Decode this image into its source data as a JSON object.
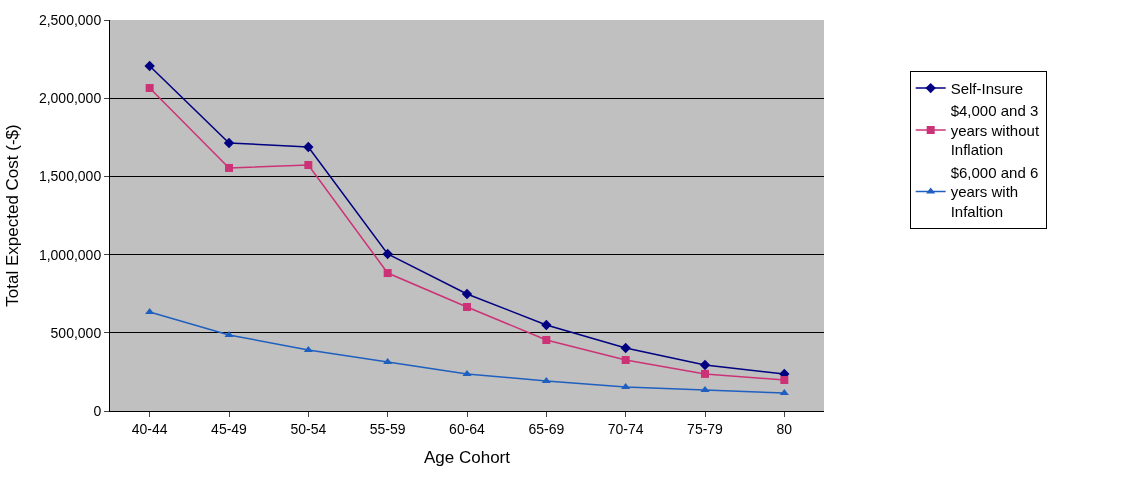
{
  "chart_data": {
    "type": "line",
    "xlabel": "Age Cohort",
    "ylabel": "Total Expected Cost (-$)",
    "categories": [
      "40-44",
      "45-49",
      "50-54",
      "55-59",
      "60-64",
      "65-69",
      "70-74",
      "75-79",
      "80"
    ],
    "series": [
      {
        "name": "Self-Insure",
        "color": "#000080",
        "marker": "diamond",
        "values": [
          2206000,
          1714000,
          1688000,
          1004000,
          748000,
          550000,
          403000,
          294000,
          237000
        ]
      },
      {
        "name": "$4,000 and 3 years without Inflation",
        "color": "#cc3377",
        "marker": "square",
        "values": [
          2065000,
          1554000,
          1573000,
          882000,
          665000,
          454000,
          326000,
          237000,
          198000
        ]
      },
      {
        "name": "$6,000 and 6 years with Infaltion",
        "color": "#1f5fbf",
        "marker": "triangle",
        "values": [
          633000,
          486000,
          390000,
          313000,
          237000,
          192000,
          153000,
          134000,
          115000
        ]
      }
    ],
    "ylim": [
      0,
      2500000
    ],
    "yticks": [
      0,
      {
        "value": 500000,
        "label": "500,000"
      },
      {
        "value": 1000000,
        "label": "1,000,000"
      },
      {
        "value": 1500000,
        "label": "1,500,000"
      },
      {
        "value": 2000000,
        "label": "2,000,000"
      },
      {
        "value": 2500000,
        "label": "2,500,000"
      }
    ],
    "grid": "y",
    "legend": "right",
    "line_style": "solid"
  }
}
